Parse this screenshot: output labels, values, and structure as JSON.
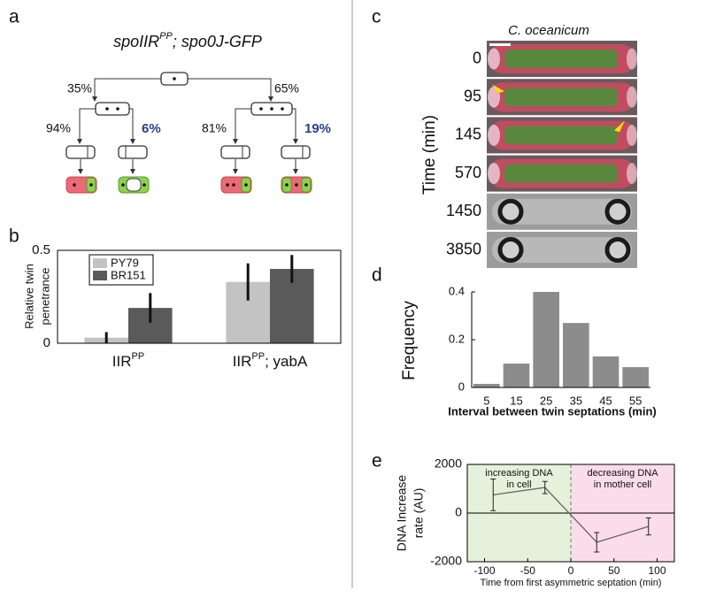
{
  "panel_labels": [
    "a",
    "b",
    "c",
    "d",
    "e"
  ],
  "diagram": {
    "title": {
      "gene": "spoIIR",
      "sup": "PP",
      "rest": "; spo0J-GFP"
    },
    "branches": [
      {
        "label": "35%",
        "children": [
          {
            "label": "94%"
          },
          {
            "label": "6%"
          }
        ]
      },
      {
        "label": "65%",
        "children": [
          {
            "label": "81%"
          },
          {
            "label": "19%"
          }
        ]
      }
    ]
  },
  "microscopy": {
    "title": "C. oceanicum",
    "ylabel": "Time (min)",
    "times": [
      0,
      95,
      145,
      570,
      1450,
      3850
    ]
  },
  "chart_data": [
    {
      "type": "bar",
      "ylabel": [
        "Relative twin",
        "penetrance"
      ],
      "categories": [
        {
          "text": "IIR",
          "sup": "PP"
        },
        {
          "text": "IIR",
          "sup": "PP",
          "suffix": "; yabA"
        }
      ],
      "series": [
        {
          "name": "PY79",
          "color": "#c3c3c3",
          "values": [
            0.03,
            0.33
          ],
          "errors": [
            0.03,
            0.1
          ]
        },
        {
          "name": "BR151",
          "color": "#5a5a5a",
          "values": [
            0.19,
            0.4
          ],
          "errors": [
            0.08,
            0.075
          ]
        }
      ],
      "ylim": [
        0,
        0.5
      ],
      "yticks": [
        0,
        0.5
      ],
      "legend": "upper left"
    },
    {
      "type": "bar",
      "ylabel": "Frequency",
      "xlabel": "Interval between twin septations (min)",
      "categories": [
        5,
        15,
        25,
        35,
        45,
        55
      ],
      "values": [
        0.015,
        0.1,
        0.4,
        0.27,
        0.13,
        0.085
      ],
      "color": "#8c8c8c",
      "ylim": [
        0,
        0.4
      ],
      "yticks": [
        0,
        0.2,
        0.4
      ]
    },
    {
      "type": "line",
      "xlabel": "Time from first asymmetric septation (min)",
      "ylabel": [
        "DNA Increase",
        "rate (AU)"
      ],
      "annotations": [
        {
          "text": [
            "increasing DNA",
            "in cell"
          ]
        },
        {
          "text": [
            "decreasing DNA",
            "in mother cell"
          ]
        }
      ],
      "x": [
        -90,
        -30,
        30,
        90
      ],
      "series": [
        {
          "color": "#666666",
          "values": [
            750,
            1050,
            -1200,
            -550
          ],
          "errors": [
            650,
            250,
            400,
            350
          ]
        }
      ],
      "xlim": [
        -120,
        120
      ],
      "xticks": [
        -100,
        -50,
        0,
        50,
        100
      ],
      "ylim": [
        -2000,
        2000
      ],
      "yticks": [
        -2000,
        0,
        2000
      ],
      "shading": [
        {
          "color": "#e5f1da"
        },
        {
          "color": "#fbdce9"
        }
      ]
    }
  ]
}
